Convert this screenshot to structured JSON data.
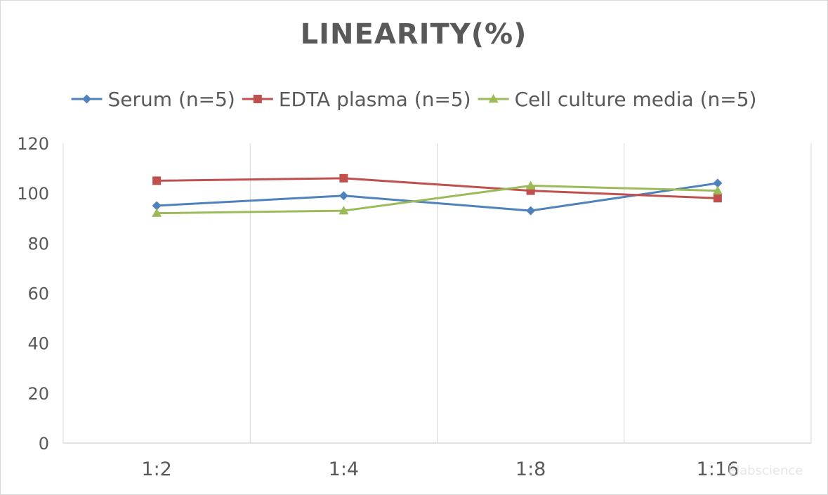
{
  "chart_data": {
    "type": "line",
    "title": "LINEARITY(%)",
    "xlabel": "",
    "ylabel": "",
    "categories": [
      "1:2",
      "1:4",
      "1:8",
      "1:16"
    ],
    "ylim": [
      0,
      120
    ],
    "yticks": [
      0,
      20,
      40,
      60,
      80,
      100,
      120
    ],
    "grid": "vertical",
    "legend_position": "top",
    "series": [
      {
        "name": "Serum (n=5)",
        "values": [
          95,
          99,
          93,
          104
        ],
        "color": "#4f81bd",
        "marker": "diamond"
      },
      {
        "name": "EDTA plasma (n=5)",
        "values": [
          105,
          106,
          101,
          98
        ],
        "color": "#c0504d",
        "marker": "square"
      },
      {
        "name": "Cell culture media (n=5)",
        "values": [
          92,
          93,
          103,
          101
        ],
        "color": "#9bbb59",
        "marker": "triangle"
      }
    ]
  },
  "watermark": "Elabscience"
}
